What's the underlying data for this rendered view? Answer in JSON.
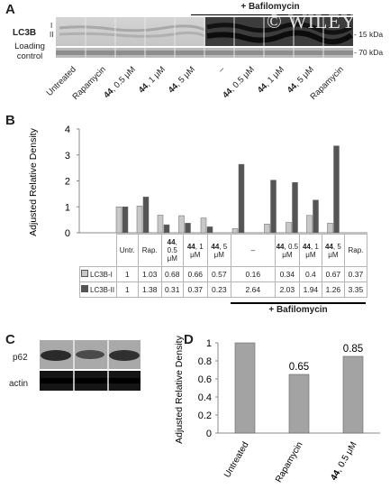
{
  "panels": {
    "a": "A",
    "b": "B",
    "c": "C",
    "d": "D"
  },
  "watermark": "© WILEY",
  "panelA": {
    "treatment_header": "+ Bafilomycin",
    "lc3b_label": "LC3B",
    "band_I": "I",
    "band_II": "II",
    "loading_label": "Loading control",
    "kda_top": "- 15 kDa",
    "kda_bottom": "- 70 kDa",
    "lanes": [
      {
        "bold": "",
        "text": "Untreated"
      },
      {
        "bold": "",
        "text": "Rapamycin"
      },
      {
        "bold": "44",
        "text": ", 0.5 μM"
      },
      {
        "bold": "44",
        "text": ", 1 μM"
      },
      {
        "bold": "44",
        "text": ", 5 μM"
      },
      {
        "bold": "",
        "text": "–"
      },
      {
        "bold": "44",
        "text": ", 0.5 μM"
      },
      {
        "bold": "44",
        "text": ", 1 μM"
      },
      {
        "bold": "44",
        "text": ", 5 μM"
      },
      {
        "bold": "",
        "text": "Rapamycin"
      }
    ]
  },
  "panelB": {
    "ylabel": "Adjusted Relative Density",
    "bafilomycin_label": "+ Bafilomycin",
    "series_labels": [
      "LC3B-I",
      "LC3B-II"
    ],
    "colors": {
      "lc3b_i": "#c8c8c8",
      "lc3b_ii": "#555555"
    }
  },
  "panelC": {
    "p62_label": "p62",
    "actin_label": "actin"
  },
  "panelD": {
    "ylabel": "Adjusted Relative Density",
    "value_labels": [
      "",
      "0.65",
      "0.85"
    ],
    "category_labels": [
      {
        "bold": "",
        "text": "Untreated"
      },
      {
        "bold": "",
        "text": "Rapamycin"
      },
      {
        "bold": "44",
        "text": ", 0.5 μM"
      }
    ]
  },
  "chart_data": [
    {
      "type": "bar",
      "title": "",
      "ylabel": "Adjusted Relative Density",
      "ylim": [
        0,
        4
      ],
      "yticks": [
        "0",
        "1",
        "2",
        "3",
        "4"
      ],
      "categories": [
        "Untr.",
        "Rap.",
        "44, 0.5 μM",
        "44, 1 μM",
        "44, 5 μM",
        "–",
        "44, 0.5 μM",
        "44, 1 μM",
        "44, 5 μM",
        "Rap."
      ],
      "series": [
        {
          "name": "LC3B-I",
          "values": [
            1,
            1.03,
            0.68,
            0.66,
            0.57,
            0.16,
            0.34,
            0.4,
            0.67,
            0.37
          ],
          "labels": [
            "1",
            "1.03",
            "0.68",
            "0.66",
            "0.57",
            "0.16",
            "0.34",
            "0.4",
            "0.67",
            "0.37"
          ]
        },
        {
          "name": "LC3B-II",
          "values": [
            1,
            1.38,
            0.31,
            0.37,
            0.23,
            2.64,
            2.03,
            1.94,
            1.26,
            3.35
          ],
          "labels": [
            "1",
            "1.38",
            "0.31",
            "0.37",
            "0.23",
            "2.64",
            "2.03",
            "1.94",
            "1.26",
            "3.35"
          ]
        }
      ],
      "grid": false,
      "legend": "table-below"
    },
    {
      "type": "bar",
      "title": "",
      "ylabel": "Adjusted Relative Density",
      "ylim": [
        0,
        1
      ],
      "yticks": [
        "0",
        "0.2",
        "0.4",
        "0.6",
        "0.8",
        "1"
      ],
      "categories": [
        "Untreated",
        "Rapamycin",
        "44, 0.5 μM"
      ],
      "values": [
        1,
        0.65,
        0.85
      ],
      "grid": false
    }
  ]
}
